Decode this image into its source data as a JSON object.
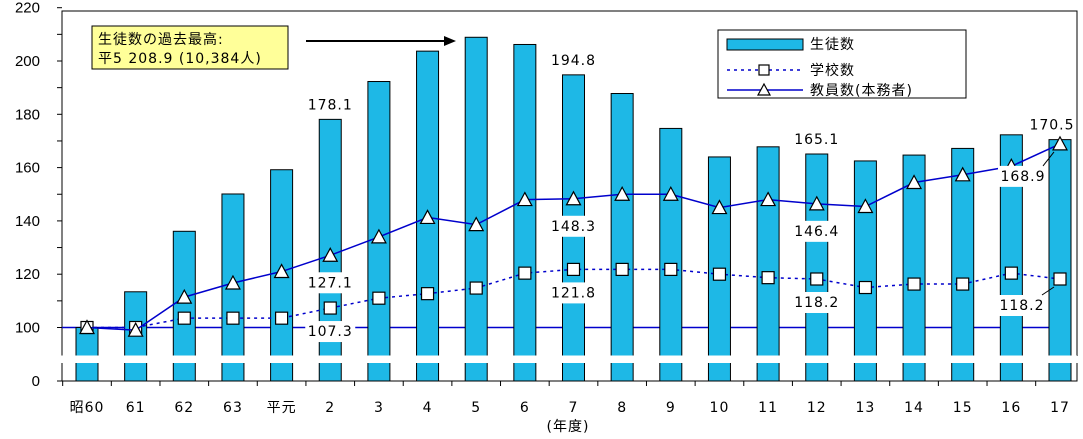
{
  "chart_data": {
    "type": "bar",
    "categories": [
      "昭60",
      "61",
      "62",
      "63",
      "平元",
      "2",
      "3",
      "4",
      "5",
      "6",
      "7",
      "8",
      "9",
      "10",
      "11",
      "12",
      "13",
      "14",
      "15",
      "16",
      "17"
    ],
    "xlabel": "(年度)",
    "ylabel": "",
    "ylim": [
      0,
      220
    ],
    "yticks": [
      "0",
      "100",
      "120",
      "140",
      "160",
      "180",
      "200",
      "220"
    ],
    "axis_break": true,
    "grid": false,
    "legend_position": "top-right",
    "series": [
      {
        "name": "生徒数",
        "type": "bar",
        "color": "#1EB8E6",
        "values": [
          100,
          113.4,
          136.1,
          150.1,
          159.2,
          178.1,
          192.3,
          203.7,
          208.9,
          206.2,
          194.8,
          187.8,
          174.7,
          164.0,
          167.8,
          165.1,
          162.5,
          164.7,
          167.2,
          172.3,
          170.5
        ]
      },
      {
        "name": "学校数",
        "type": "line",
        "style": "dotted",
        "marker": "square",
        "color": "#0000CC",
        "values": [
          100,
          100,
          103.5,
          103.5,
          103.5,
          107.3,
          111.0,
          112.7,
          114.8,
          120.4,
          121.8,
          121.8,
          121.8,
          120.0,
          118.7,
          118.2,
          115.0,
          116.3,
          116.3,
          120.4,
          118.2
        ]
      },
      {
        "name": "教員数(本務者)",
        "type": "line",
        "style": "solid",
        "marker": "triangle",
        "color": "#0000CC",
        "values": [
          100,
          99.0,
          111.4,
          116.7,
          121.0,
          127.1,
          134.0,
          141.3,
          138.6,
          148.0,
          148.3,
          150.0,
          150.0,
          145.0,
          148.0,
          146.4,
          145.4,
          154.4,
          157.3,
          160.5,
          168.9
        ]
      }
    ],
    "annotations": {
      "record_box_line1": "生徒数の過去最高:",
      "record_box_line2": "平5 208.9 (10,384人)",
      "labels": [
        {
          "text": "178.1",
          "series": 0,
          "index": 5
        },
        {
          "text": "194.8",
          "series": 0,
          "index": 10
        },
        {
          "text": "165.1",
          "series": 0,
          "index": 15
        },
        {
          "text": "170.5",
          "series": 0,
          "index": 20
        },
        {
          "text": "127.1",
          "series": 2,
          "index": 5
        },
        {
          "text": "148.3",
          "series": 2,
          "index": 10
        },
        {
          "text": "146.4",
          "series": 2,
          "index": 15
        },
        {
          "text": "168.9",
          "series": 2,
          "index": 20
        },
        {
          "text": "107.3",
          "series": 1,
          "index": 5
        },
        {
          "text": "121.8",
          "series": 1,
          "index": 10
        },
        {
          "text": "118.2",
          "series": 1,
          "index": 15
        },
        {
          "text": "118.2",
          "series": 1,
          "index": 20
        }
      ]
    }
  }
}
